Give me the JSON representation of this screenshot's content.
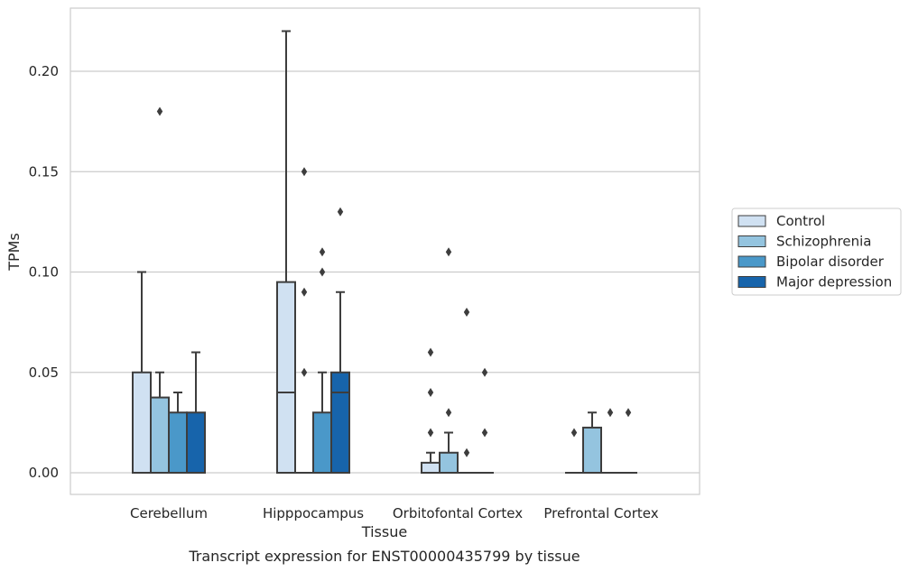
{
  "chart_data": {
    "type": "box",
    "title": "",
    "caption": "Transcript expression for ENST00000435799 by tissue",
    "xlabel": "Tissue",
    "ylabel": "TPMs",
    "ylim": [
      -0.011,
      0.232
    ],
    "yticks": [
      0.0,
      0.05,
      0.1,
      0.15,
      0.2
    ],
    "ytick_labels": [
      "0.00",
      "0.05",
      "0.10",
      "0.15",
      "0.20"
    ],
    "categories": [
      "Cerebellum",
      "Hipppocampus",
      "Orbitofontal Cortex",
      "Prefrontal Cortex"
    ],
    "grid": true,
    "legend_position": "right",
    "series": [
      {
        "name": "Control",
        "color": "#d0e1f2",
        "boxes": [
          {
            "category": "Cerebellum",
            "q1": 0.0,
            "median": 0.0,
            "q3": 0.05,
            "whisker_low": 0.0,
            "whisker_high": 0.1,
            "outliers": []
          },
          {
            "category": "Hipppocampus",
            "q1": 0.0,
            "median": 0.04,
            "q3": 0.095,
            "whisker_low": 0.0,
            "whisker_high": 0.22,
            "outliers": []
          },
          {
            "category": "Orbitofontal Cortex",
            "q1": 0.0,
            "median": 0.0,
            "q3": 0.005,
            "whisker_low": 0.0,
            "whisker_high": 0.01,
            "outliers": [
              0.02,
              0.04,
              0.06
            ]
          },
          {
            "category": "Prefrontal Cortex",
            "q1": 0.0,
            "median": 0.0,
            "q3": 0.0,
            "whisker_low": 0.0,
            "whisker_high": 0.0,
            "outliers": [
              0.02
            ]
          }
        ]
      },
      {
        "name": "Schizophrenia",
        "color": "#94c4df",
        "boxes": [
          {
            "category": "Cerebellum",
            "q1": 0.0,
            "median": 0.0,
            "q3": 0.0375,
            "whisker_low": 0.0,
            "whisker_high": 0.05,
            "outliers": [
              0.18
            ]
          },
          {
            "category": "Hipppocampus",
            "q1": 0.0,
            "median": 0.0,
            "q3": 0.0,
            "whisker_low": 0.0,
            "whisker_high": 0.0,
            "outliers": [
              0.05,
              0.09,
              0.15
            ]
          },
          {
            "category": "Orbitofontal Cortex",
            "q1": 0.0,
            "median": 0.0,
            "q3": 0.01,
            "whisker_low": 0.0,
            "whisker_high": 0.02,
            "outliers": [
              0.03,
              0.11
            ]
          },
          {
            "category": "Prefrontal Cortex",
            "q1": 0.0,
            "median": 0.0,
            "q3": 0.0225,
            "whisker_low": 0.0,
            "whisker_high": 0.03,
            "outliers": []
          }
        ]
      },
      {
        "name": "Bipolar disorder",
        "color": "#4a98c9",
        "boxes": [
          {
            "category": "Cerebellum",
            "q1": 0.0,
            "median": 0.0,
            "q3": 0.03,
            "whisker_low": 0.0,
            "whisker_high": 0.04,
            "outliers": []
          },
          {
            "category": "Hipppocampus",
            "q1": 0.0,
            "median": 0.0,
            "q3": 0.03,
            "whisker_low": 0.0,
            "whisker_high": 0.05,
            "outliers": [
              0.1,
              0.11
            ]
          },
          {
            "category": "Orbitofontal Cortex",
            "q1": 0.0,
            "median": 0.0,
            "q3": 0.0,
            "whisker_low": 0.0,
            "whisker_high": 0.0,
            "outliers": [
              0.01,
              0.08
            ]
          },
          {
            "category": "Prefrontal Cortex",
            "q1": 0.0,
            "median": 0.0,
            "q3": 0.0,
            "whisker_low": 0.0,
            "whisker_high": 0.0,
            "outliers": [
              0.03
            ]
          }
        ]
      },
      {
        "name": "Major depression",
        "color": "#1764ab",
        "boxes": [
          {
            "category": "Cerebellum",
            "q1": 0.0,
            "median": 0.0,
            "q3": 0.03,
            "whisker_low": 0.0,
            "whisker_high": 0.06,
            "outliers": []
          },
          {
            "category": "Hipppocampus",
            "q1": 0.0,
            "median": 0.04,
            "q3": 0.05,
            "whisker_low": 0.0,
            "whisker_high": 0.09,
            "outliers": [
              0.13
            ]
          },
          {
            "category": "Orbitofontal Cortex",
            "q1": 0.0,
            "median": 0.0,
            "q3": 0.0,
            "whisker_low": 0.0,
            "whisker_high": 0.0,
            "outliers": [
              0.02,
              0.05
            ]
          },
          {
            "category": "Prefrontal Cortex",
            "q1": 0.0,
            "median": 0.0,
            "q3": 0.0,
            "whisker_low": 0.0,
            "whisker_high": 0.0,
            "outliers": [
              0.03
            ]
          }
        ]
      }
    ]
  }
}
